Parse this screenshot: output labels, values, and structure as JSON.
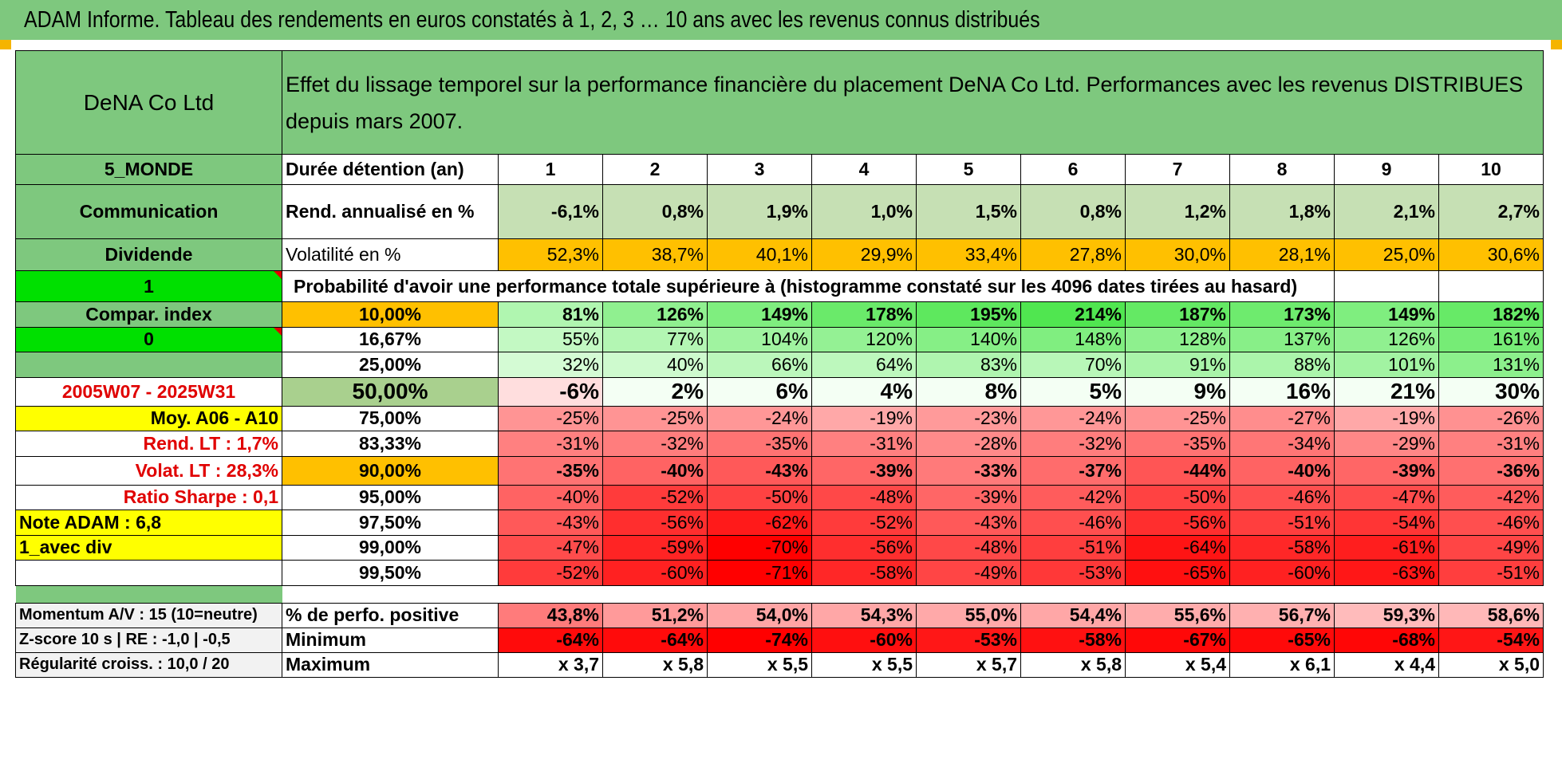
{
  "title": "ADAM Informe. Tableau des rendements en euros constatés à 1, 2, 3 … 10 ans avec les revenus connus distribués",
  "header": {
    "company": "DeNA Co Ltd",
    "description": "Effet du lissage temporel sur la performance financière du placement DeNA Co Ltd. Performances avec les revenus DISTRIBUES depuis mars 2007."
  },
  "side": {
    "region": "5_MONDE",
    "sector": "Communication",
    "dividend_label": "Dividende",
    "dividend_value": "1",
    "compar_label": "Compar. index",
    "compar_value": "0",
    "period": "2005W07 - 2025W31",
    "moy": "Moy. A06 - A10",
    "rend_lt": "Rend. LT :    1,7%",
    "volat_lt": "Volat. LT :    28,3%",
    "sharpe": "Ratio Sharpe :    0,1",
    "note": "Note ADAM : 6,8",
    "avec_div": "1_avec div"
  },
  "labels": {
    "duree": "Durée détention (an)",
    "rend": "Rend. annualisé en %",
    "vol": "Volatilité en %",
    "proba": "Probabilité d'avoir une performance totale supérieure à (histogramme constaté sur les 4096 dates tirées au hasard)"
  },
  "years": [
    "1",
    "2",
    "3",
    "4",
    "5",
    "6",
    "7",
    "8",
    "9",
    "10"
  ],
  "rendements": [
    "-6,1%",
    "0,8%",
    "1,9%",
    "1,0%",
    "1,5%",
    "0,8%",
    "1,2%",
    "1,8%",
    "2,1%",
    "2,7%"
  ],
  "volatilites": [
    "52,3%",
    "38,7%",
    "40,1%",
    "29,9%",
    "33,4%",
    "27,8%",
    "30,0%",
    "28,1%",
    "25,0%",
    "30,6%"
  ],
  "quantiles": [
    {
      "p": "10,00%",
      "v": [
        "81%",
        "126%",
        "149%",
        "178%",
        "195%",
        "214%",
        "187%",
        "173%",
        "149%",
        "182%"
      ]
    },
    {
      "p": "16,67%",
      "v": [
        "55%",
        "77%",
        "104%",
        "120%",
        "140%",
        "148%",
        "128%",
        "137%",
        "126%",
        "161%"
      ]
    },
    {
      "p": "25,00%",
      "v": [
        "32%",
        "40%",
        "66%",
        "64%",
        "83%",
        "70%",
        "91%",
        "88%",
        "101%",
        "131%"
      ]
    },
    {
      "p": "50,00%",
      "v": [
        "-6%",
        "2%",
        "6%",
        "4%",
        "8%",
        "5%",
        "9%",
        "16%",
        "21%",
        "30%"
      ]
    },
    {
      "p": "75,00%",
      "v": [
        "-25%",
        "-25%",
        "-24%",
        "-19%",
        "-23%",
        "-24%",
        "-25%",
        "-27%",
        "-19%",
        "-26%"
      ]
    },
    {
      "p": "83,33%",
      "v": [
        "-31%",
        "-32%",
        "-35%",
        "-31%",
        "-28%",
        "-32%",
        "-35%",
        "-34%",
        "-29%",
        "-31%"
      ]
    },
    {
      "p": "90,00%",
      "v": [
        "-35%",
        "-40%",
        "-43%",
        "-39%",
        "-33%",
        "-37%",
        "-44%",
        "-40%",
        "-39%",
        "-36%"
      ]
    },
    {
      "p": "95,00%",
      "v": [
        "-40%",
        "-52%",
        "-50%",
        "-48%",
        "-39%",
        "-42%",
        "-50%",
        "-46%",
        "-47%",
        "-42%"
      ]
    },
    {
      "p": "97,50%",
      "v": [
        "-43%",
        "-56%",
        "-62%",
        "-52%",
        "-43%",
        "-46%",
        "-56%",
        "-51%",
        "-54%",
        "-46%"
      ]
    },
    {
      "p": "99,00%",
      "v": [
        "-47%",
        "-59%",
        "-70%",
        "-56%",
        "-48%",
        "-51%",
        "-64%",
        "-58%",
        "-61%",
        "-49%"
      ]
    },
    {
      "p": "99,50%",
      "v": [
        "-52%",
        "-60%",
        "-71%",
        "-58%",
        "-49%",
        "-53%",
        "-65%",
        "-60%",
        "-63%",
        "-51%"
      ]
    }
  ],
  "footer": {
    "momentum": "Momentum A/V : 15 (10=neutre)",
    "zscore": "Z-score 10 s | RE : -1,0 | -0,5",
    "regularite": "Régularité croiss. : 10,0 / 20",
    "pos_label": "% de perfo. positive",
    "min_label": "Minimum",
    "max_label": "Maximum",
    "positive": [
      "43,8%",
      "51,2%",
      "54,0%",
      "54,3%",
      "55,0%",
      "54,4%",
      "55,6%",
      "56,7%",
      "59,3%",
      "58,6%"
    ],
    "minimum": [
      "-64%",
      "-64%",
      "-74%",
      "-60%",
      "-53%",
      "-58%",
      "-67%",
      "-65%",
      "-68%",
      "-54%"
    ],
    "maximum": [
      "x 3,7",
      "x 5,8",
      "x 5,5",
      "x 5,5",
      "x 5,7",
      "x 5,8",
      "x 5,4",
      "x 6,1",
      "x 4,4",
      "x 5,0"
    ]
  },
  "colors": {
    "header_green": "#7ec87e",
    "lime": "#00e000",
    "yellow": "#ffff00",
    "orange": "#ffc000",
    "label_red": "#e00000"
  }
}
